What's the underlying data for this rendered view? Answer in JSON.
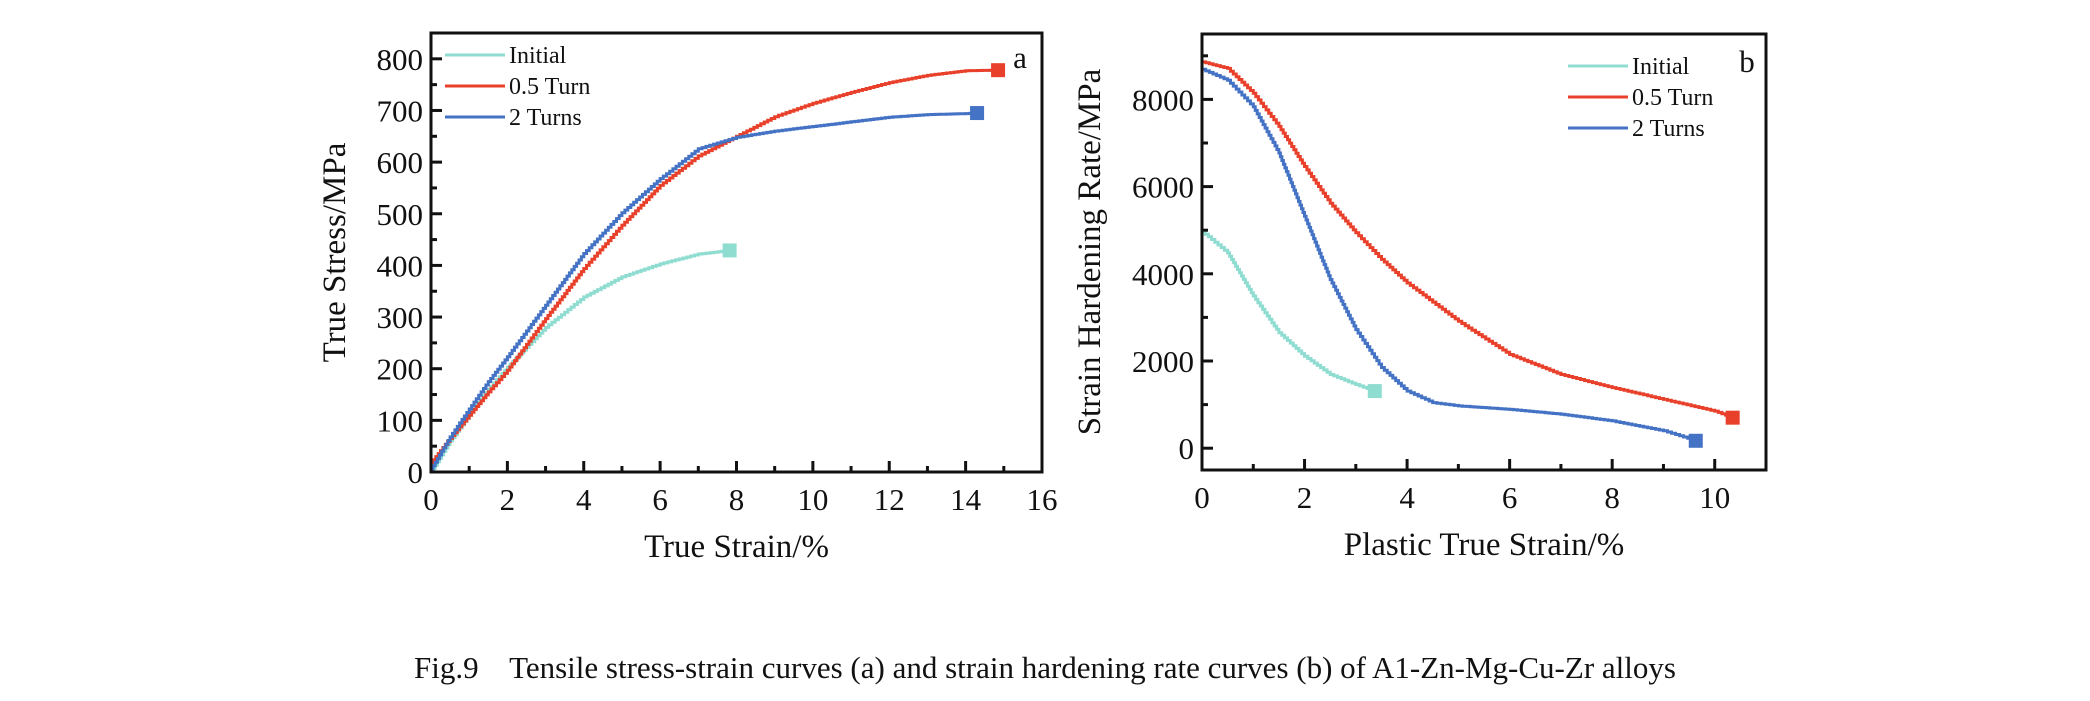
{
  "caption": "Fig.9    Tensile stress-strain curves (a) and strain hardening rate curves (b) of A1-Zn-Mg-Cu-Zr alloys",
  "chart_data": [
    {
      "id": "a",
      "panel_label": "a",
      "type": "line",
      "title": "",
      "xlabel": "True Strain/%",
      "ylabel": "True Stress/MPa",
      "xlim": [
        0,
        16
      ],
      "ylim": [
        0,
        850
      ],
      "xticks": [
        0,
        2,
        4,
        6,
        8,
        10,
        12,
        14,
        16
      ],
      "xticks_minor": [
        1,
        3,
        5,
        7,
        9,
        11,
        13,
        15
      ],
      "yticks": [
        0,
        100,
        200,
        300,
        400,
        500,
        600,
        700,
        800
      ],
      "yticks_minor": [
        50,
        150,
        250,
        350,
        450,
        550,
        650,
        750
      ],
      "grid": false,
      "legend_position": "top-left",
      "series": [
        {
          "name": "Initial",
          "color": "#8fdcd0",
          "end_marker": "square",
          "x": [
            0,
            0.5,
            1,
            1.5,
            2,
            3,
            4,
            5,
            6,
            7,
            7.82
          ],
          "y": [
            0,
            60,
            110,
            160,
            203,
            280,
            339,
            378,
            403,
            422,
            429
          ]
        },
        {
          "name": "0.5 Turn",
          "color": "#e8402a",
          "end_marker": "square",
          "x": [
            0,
            0.5,
            1,
            1.5,
            2,
            3,
            4,
            5,
            6,
            7,
            8,
            9,
            10,
            11,
            12,
            13,
            14,
            14.85
          ],
          "y": [
            18,
            65,
            110,
            155,
            197,
            297,
            394,
            478,
            555,
            612,
            650,
            688,
            714,
            735,
            754,
            768,
            777,
            778
          ]
        },
        {
          "name": "2 Turns",
          "color": "#4472c4",
          "end_marker": "square",
          "x": [
            0,
            0.5,
            1,
            1.5,
            2,
            3,
            4,
            5,
            6,
            7,
            8,
            9,
            10,
            11,
            12,
            13,
            14,
            14.3
          ],
          "y": [
            5,
            68,
            122,
            175,
            223,
            323,
            423,
            502,
            568,
            626,
            648,
            660,
            669,
            678,
            687,
            692,
            694,
            695
          ]
        }
      ]
    },
    {
      "id": "b",
      "panel_label": "b",
      "type": "line",
      "title": "",
      "xlabel": "Plastic True Strain/%",
      "ylabel": "Strain Hardening Rate/MPa",
      "xlim": [
        0,
        11
      ],
      "ylim": [
        -500,
        9500
      ],
      "xticks": [
        0,
        2,
        4,
        6,
        8,
        10
      ],
      "xticks_minor": [
        1,
        3,
        5,
        7,
        9
      ],
      "yticks": [
        0,
        2000,
        4000,
        6000,
        8000
      ],
      "yticks_minor": [
        1000,
        3000,
        5000,
        7000,
        9000
      ],
      "grid": false,
      "legend_position": "top-right",
      "series": [
        {
          "name": "Initial",
          "color": "#8fdcd0",
          "end_marker": "square",
          "x": [
            0,
            0.5,
            1,
            1.5,
            2,
            2.5,
            3,
            3.37
          ],
          "y": [
            4970,
            4480,
            3490,
            2650,
            2110,
            1690,
            1460,
            1310
          ]
        },
        {
          "name": "0.5 Turn",
          "color": "#e8402a",
          "end_marker": "square",
          "x": [
            0,
            0.5,
            1,
            1.5,
            2,
            2.5,
            3,
            3.5,
            4,
            5,
            6,
            7,
            8,
            9,
            10,
            10.35
          ],
          "y": [
            8860,
            8710,
            8140,
            7380,
            6460,
            5620,
            4940,
            4330,
            3790,
            2910,
            2150,
            1690,
            1390,
            1120,
            850,
            700
          ]
        },
        {
          "name": "2 Turns",
          "color": "#4472c4",
          "end_marker": "square",
          "x": [
            0,
            0.5,
            1,
            1.5,
            2,
            2.5,
            3,
            3.5,
            4,
            4.5,
            5,
            6,
            7,
            8,
            9,
            9.63
          ],
          "y": [
            8690,
            8440,
            7830,
            6770,
            5320,
            3870,
            2720,
            1850,
            1310,
            1045,
            970,
            890,
            780,
            625,
            400,
            170
          ]
        }
      ]
    }
  ]
}
